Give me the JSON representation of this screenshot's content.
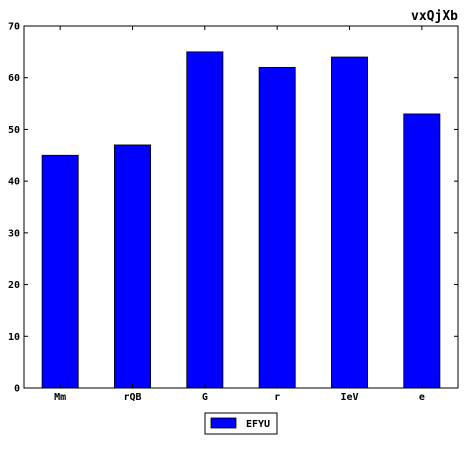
{
  "chart_data": {
    "type": "bar",
    "title": "vxQjXb",
    "xlabel": "",
    "ylabel": "",
    "categories": [
      "Mm",
      "rQB",
      "G",
      "r",
      "IeV",
      "e"
    ],
    "series": [
      {
        "name": "EFYU",
        "values": [
          45,
          47,
          65,
          62,
          64,
          53
        ]
      }
    ],
    "ylim": [
      0,
      70
    ],
    "yticks": [
      0,
      10,
      20,
      30,
      40,
      50,
      60,
      70
    ],
    "grid": false,
    "legend_position": "bottom-center",
    "colors": {
      "bar": "#0000ff",
      "edge": "#000000"
    }
  }
}
